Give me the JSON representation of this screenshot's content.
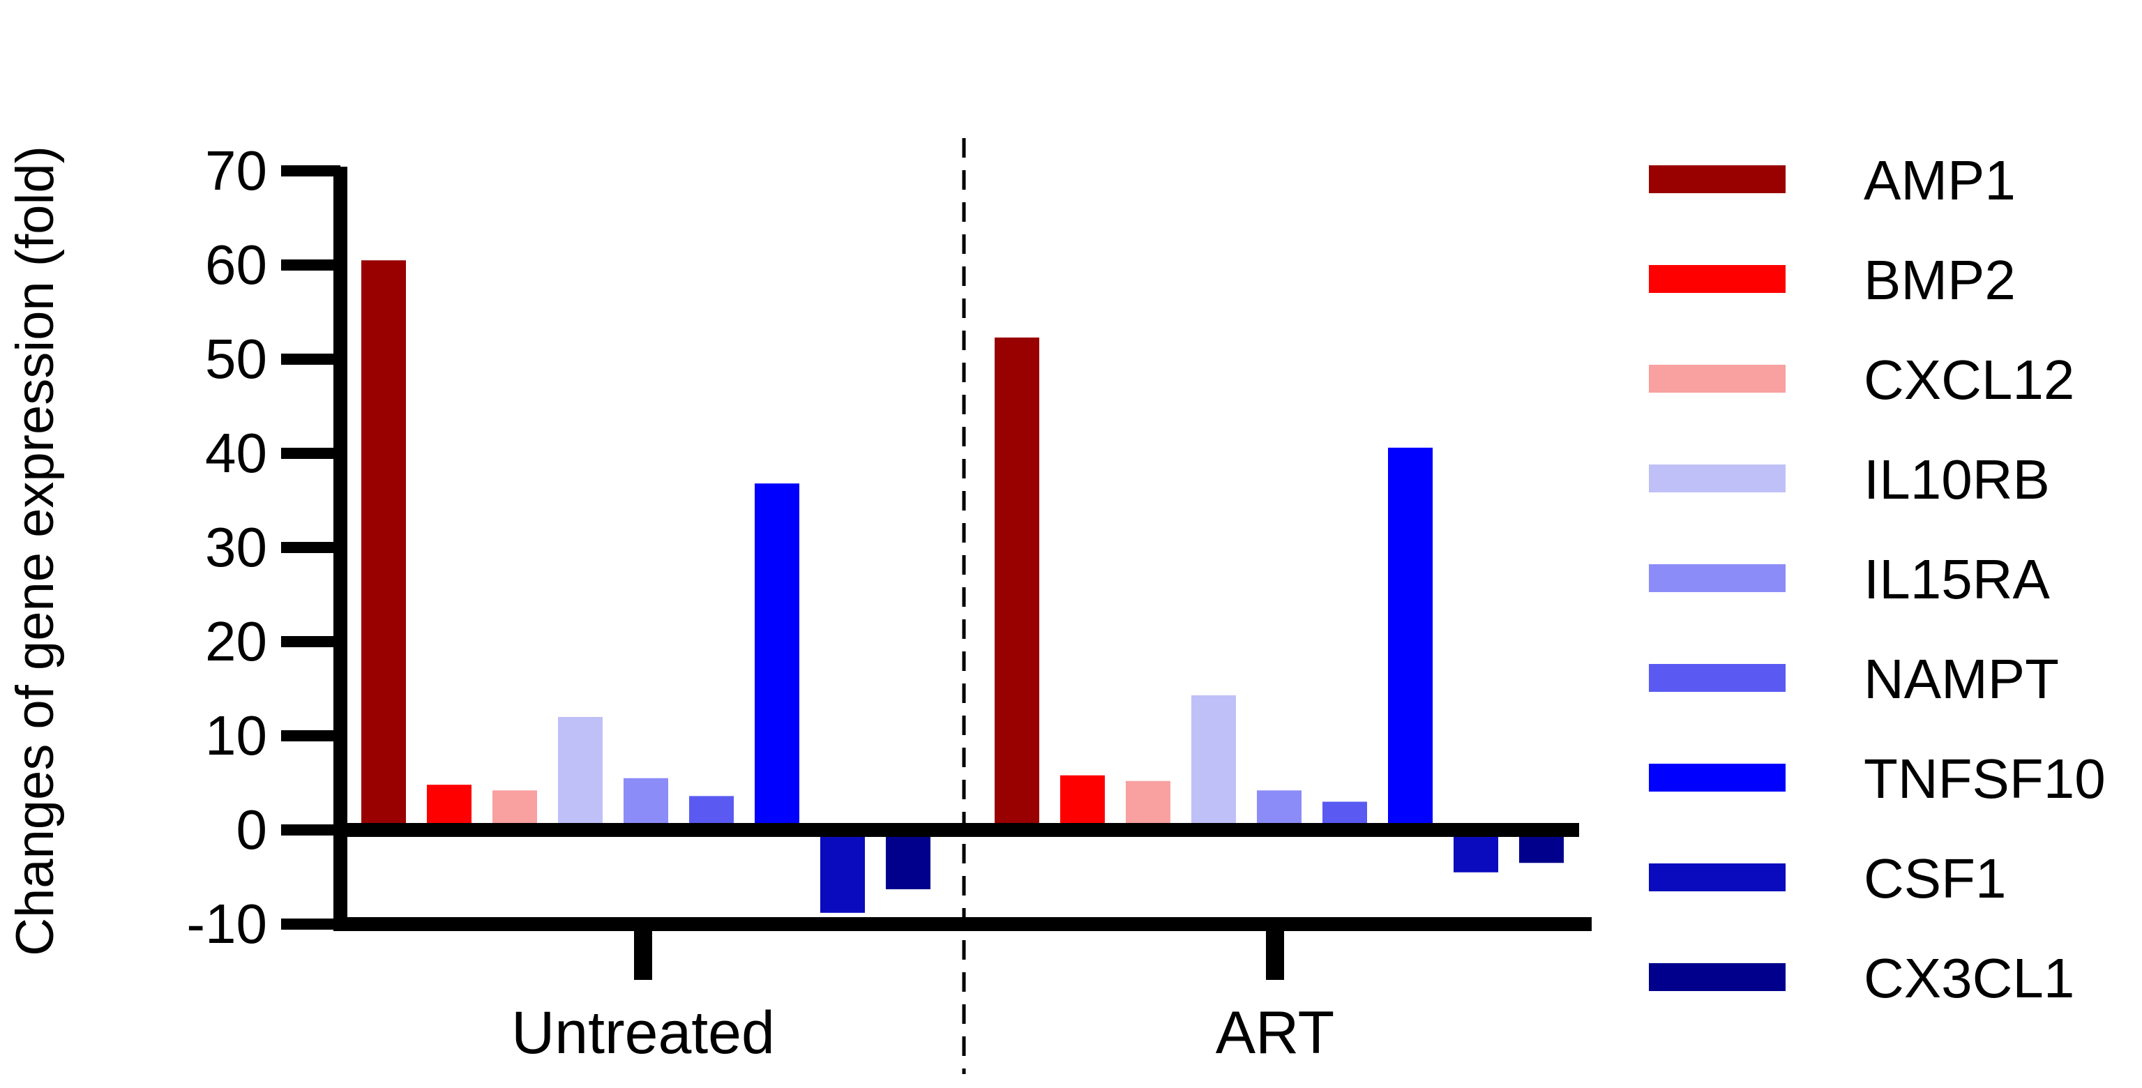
{
  "chart_data": {
    "type": "bar",
    "ylabel": "Changes of gene expression (fold)",
    "xlabel": "",
    "ylim": [
      -10,
      70
    ],
    "yticks": [
      -10,
      0,
      10,
      20,
      30,
      40,
      50,
      60,
      70
    ],
    "categories": [
      "Untreated",
      "ART"
    ],
    "legend_position": "right",
    "grid": false,
    "group_separator": "dashed",
    "series": [
      {
        "name": "AMP1",
        "color": "#990000",
        "values": [
          60.5,
          52.3
        ]
      },
      {
        "name": "BMP2",
        "color": "#FF0000",
        "values": [
          4.8,
          5.8
        ]
      },
      {
        "name": "CXCL12",
        "color": "#F9A0A0",
        "values": [
          4.2,
          5.2
        ]
      },
      {
        "name": "IL10RB",
        "color": "#C0C0F8",
        "values": [
          12.0,
          14.3
        ]
      },
      {
        "name": "IL15RA",
        "color": "#8C8CF8",
        "values": [
          5.5,
          4.2
        ]
      },
      {
        "name": "NAMPT",
        "color": "#5A5AF2",
        "values": [
          3.6,
          3.0
        ]
      },
      {
        "name": "TNFSF10",
        "color": "#0000FF",
        "values": [
          36.8,
          40.6
        ]
      },
      {
        "name": "CSF1",
        "color": "#0A0ABE",
        "values": [
          -8.8,
          -4.5
        ]
      },
      {
        "name": "CX3CL1",
        "color": "#00008C",
        "values": [
          -6.3,
          -3.5
        ]
      }
    ]
  }
}
